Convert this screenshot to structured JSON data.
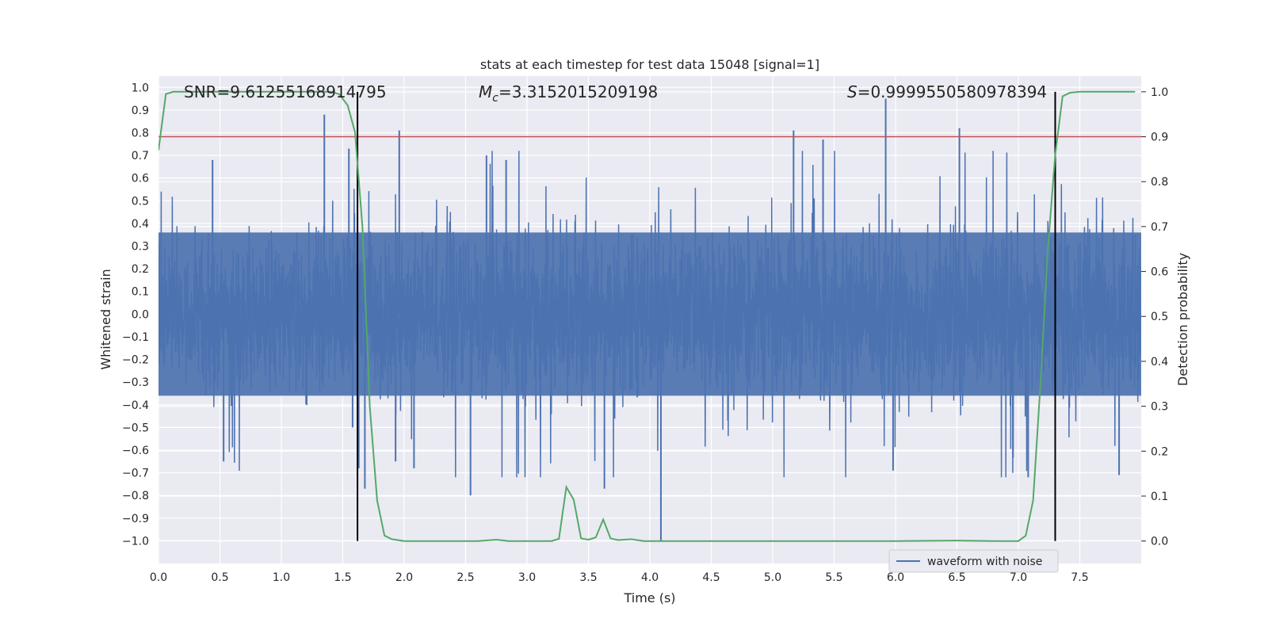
{
  "chart_data": {
    "type": "line",
    "title": "stats at each timestep for test data 15048 [signal=1]",
    "xlabel": "Time (s)",
    "ylabel": "Whitened strain",
    "ylabel_right": "Detection probability",
    "xlim": [
      0.0,
      8.0
    ],
    "ylim": [
      -1.1,
      1.05
    ],
    "ylim_right": [
      -0.05,
      1.035
    ],
    "x_ticks": [
      0.0,
      0.5,
      1.0,
      1.5,
      2.0,
      2.5,
      3.0,
      3.5,
      4.0,
      4.5,
      5.0,
      5.5,
      6.0,
      6.5,
      7.0,
      7.5
    ],
    "x_tick_labels": [
      "0.0",
      "0.5",
      "1.0",
      "1.5",
      "2.0",
      "2.5",
      "3.0",
      "3.5",
      "4.0",
      "4.5",
      "5.0",
      "5.5",
      "6.0",
      "6.5",
      "7.0",
      "7.5"
    ],
    "y_ticks": [
      1.0,
      0.9,
      0.8,
      0.7,
      0.6,
      0.5,
      0.4,
      0.3,
      0.2,
      0.1,
      0.0,
      -0.1,
      -0.2,
      -0.3,
      -0.4,
      -0.5,
      -0.6,
      -0.7,
      -0.8,
      -0.9,
      -1.0
    ],
    "y_tick_labels": [
      "1.0",
      "0.9",
      "0.8",
      "0.7",
      "0.6",
      "0.5",
      "0.4",
      "0.3",
      "0.2",
      "0.1",
      "0.0",
      "−0.1",
      "−0.2",
      "−0.3",
      "−0.4",
      "−0.5",
      "−0.6",
      "−0.7",
      "−0.8",
      "−0.9",
      "−1.0"
    ],
    "y_ticks_right": [
      1.0,
      0.9,
      0.8,
      0.7,
      0.6,
      0.5,
      0.4,
      0.3,
      0.2,
      0.1,
      0.0
    ],
    "y_tick_labels_right": [
      "1.0",
      "0.9",
      "0.8",
      "0.7",
      "0.6",
      "0.5",
      "0.4",
      "0.3",
      "0.2",
      "0.1",
      "0.0"
    ],
    "grid": true,
    "legend": {
      "position": "lower-right",
      "entries": [
        "waveform with noise"
      ]
    },
    "annotations": {
      "snr": "SNR=9.61255168914795",
      "mc_symbol": "M",
      "mc_sub": "c",
      "mc_value": "=3.3152015209198",
      "s_symbol": "S",
      "s_value": "=0.9999550580978394"
    },
    "waveform": {
      "name": "waveform with noise",
      "seed": 15048,
      "n_samples": 4000,
      "envelope": 0.36,
      "spikes": [
        {
          "x": 1.35,
          "y": 0.88
        },
        {
          "x": 1.55,
          "y": 0.73
        },
        {
          "x": 1.58,
          "y": -0.5
        },
        {
          "x": 1.63,
          "y": -0.68
        },
        {
          "x": 1.68,
          "y": -0.77
        },
        {
          "x": 1.96,
          "y": 0.81
        },
        {
          "x": 1.93,
          "y": -0.65
        },
        {
          "x": 2.08,
          "y": -0.68
        },
        {
          "x": 2.54,
          "y": -0.8
        },
        {
          "x": 2.67,
          "y": 0.7
        },
        {
          "x": 3.63,
          "y": -0.77
        },
        {
          "x": 4.09,
          "y": -1.0
        },
        {
          "x": 5.17,
          "y": 0.81
        },
        {
          "x": 5.41,
          "y": 0.77
        },
        {
          "x": 5.92,
          "y": 0.95
        },
        {
          "x": 5.98,
          "y": -0.69
        },
        {
          "x": 6.52,
          "y": 0.82
        },
        {
          "x": 7.08,
          "y": -0.72
        },
        {
          "x": 7.82,
          "y": -0.71
        },
        {
          "x": 0.44,
          "y": 0.68
        },
        {
          "x": 0.53,
          "y": -0.65
        },
        {
          "x": 2.83,
          "y": 0.68
        }
      ],
      "color": "#4c72b0"
    },
    "probability": {
      "x": [
        0.0,
        0.06,
        0.12,
        0.2,
        0.4,
        0.8,
        1.2,
        1.4,
        1.47,
        1.54,
        1.6,
        1.66,
        1.72,
        1.78,
        1.84,
        1.9,
        2.0,
        2.2,
        2.6,
        2.75,
        2.85,
        3.2,
        3.26,
        3.32,
        3.38,
        3.44,
        3.5,
        3.56,
        3.62,
        3.68,
        3.74,
        3.85,
        3.95,
        4.5,
        5.0,
        6.0,
        6.5,
        6.8,
        7.0,
        7.06,
        7.12,
        7.18,
        7.24,
        7.3,
        7.36,
        7.42,
        7.5,
        7.6,
        7.95
      ],
      "values": [
        0.87,
        0.995,
        1.0,
        1.0,
        1.0,
        1.0,
        1.0,
        1.0,
        0.995,
        0.97,
        0.91,
        0.7,
        0.3,
        0.09,
        0.012,
        0.004,
        0.0,
        0.0,
        0.0,
        0.003,
        0.0,
        0.0,
        0.005,
        0.12,
        0.092,
        0.006,
        0.003,
        0.008,
        0.048,
        0.006,
        0.002,
        0.004,
        0.0,
        0.0,
        0.0,
        0.0,
        0.001,
        0.0,
        0.0,
        0.012,
        0.09,
        0.35,
        0.65,
        0.86,
        0.99,
        0.998,
        1.0,
        1.0,
        1.0
      ],
      "color": "#55a868"
    },
    "threshold": {
      "value": 0.9,
      "color": "#c44e52"
    },
    "vlines": [
      1.62,
      7.3
    ],
    "vline_color": "#000000"
  }
}
